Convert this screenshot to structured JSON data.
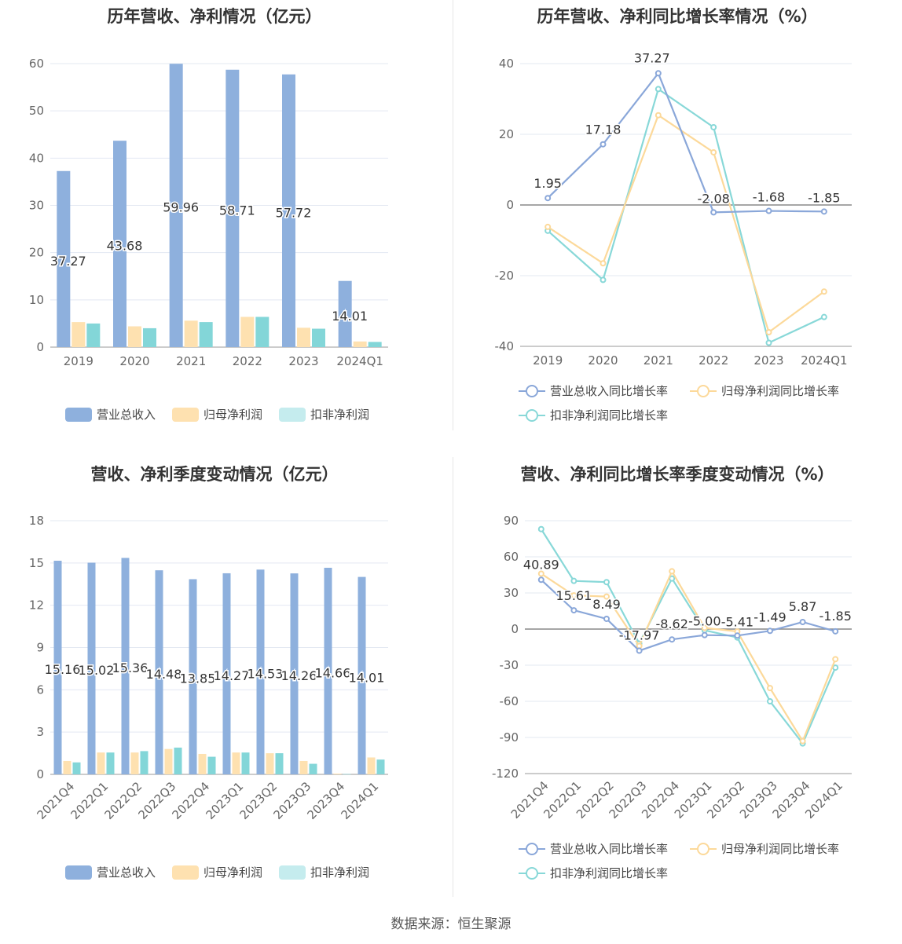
{
  "colors": {
    "revenue": "#8eb0dd",
    "parent_profit": "#fee1b0",
    "deducted_profit": "#83d6d8",
    "revenue_line": "#8aa7d9",
    "parent_line": "#fcd99a",
    "deducted_line": "#88d8d8"
  },
  "legend": {
    "revenue": "营业总收入",
    "parent_profit": "归母净利润",
    "deducted_profit": "扣非净利润",
    "revenue_growth": "营业总收入同比增长率",
    "parent_growth": "归母净利润同比增长率",
    "deducted_growth": "扣非净利润同比增长率"
  },
  "footer": "数据来源：恒生聚源",
  "chart_data": [
    {
      "type": "bar",
      "title": "历年营收、净利情况（亿元）",
      "categories": [
        "2019",
        "2020",
        "2021",
        "2022",
        "2023",
        "2024Q1"
      ],
      "ylim": [
        0,
        60
      ],
      "yticks": [
        "0",
        "10",
        "20",
        "30",
        "40",
        "50",
        "60"
      ],
      "grid": true,
      "series": [
        {
          "name": "营业总收入",
          "values": [
            37.27,
            43.68,
            59.96,
            58.71,
            57.72,
            14.01
          ],
          "labels": [
            "37.27",
            "43.68",
            "59.96",
            "58.71",
            "57.72",
            "14.01"
          ]
        },
        {
          "name": "归母净利润",
          "values": [
            5.3,
            4.4,
            5.6,
            6.4,
            4.1,
            1.2
          ]
        },
        {
          "name": "扣非净利润",
          "values": [
            5.0,
            4.0,
            5.3,
            6.4,
            3.9,
            1.1
          ]
        }
      ]
    },
    {
      "type": "line",
      "title": "历年营收、净利同比增长率情况（%）",
      "categories": [
        "2019",
        "2020",
        "2021",
        "2022",
        "2023",
        "2024Q1"
      ],
      "ylim": [
        -40,
        40
      ],
      "yticks": [
        "-40",
        "-20",
        "0",
        "20",
        "40"
      ],
      "grid": true,
      "series": [
        {
          "name": "营业总收入同比增长率",
          "values": [
            1.95,
            17.18,
            37.27,
            -2.08,
            -1.68,
            -1.85
          ],
          "labels": [
            "1.95",
            "17.18",
            "37.27",
            "-2.08",
            "-1.68",
            "-1.85"
          ]
        },
        {
          "name": "归母净利润同比增长率",
          "values": [
            -6.2,
            -16.5,
            25.4,
            14.9,
            -36.0,
            -24.5
          ]
        },
        {
          "name": "扣非净利润同比增长率",
          "values": [
            -7.3,
            -21.2,
            32.8,
            22.0,
            -39.0,
            -31.7
          ]
        }
      ]
    },
    {
      "type": "bar",
      "title": "营收、净利季度变动情况（亿元）",
      "categories": [
        "2021Q4",
        "2022Q1",
        "2022Q2",
        "2022Q3",
        "2022Q4",
        "2023Q1",
        "2023Q2",
        "2023Q3",
        "2023Q4",
        "2024Q1"
      ],
      "ylim": [
        0,
        18
      ],
      "yticks": [
        "0",
        "3",
        "6",
        "9",
        "12",
        "15",
        "18"
      ],
      "grid": true,
      "series": [
        {
          "name": "营业总收入",
          "values": [
            15.16,
            15.02,
            15.36,
            14.48,
            13.85,
            14.27,
            14.53,
            14.26,
            14.66,
            14.01
          ],
          "labels": [
            "15.16",
            "15.02",
            "15.36",
            "14.48",
            "13.85",
            "14.27",
            "14.53",
            "14.26",
            "14.66",
            "14.01"
          ]
        },
        {
          "name": "归母净利润",
          "values": [
            0.95,
            1.55,
            1.55,
            1.8,
            1.45,
            1.55,
            1.5,
            0.95,
            0.05,
            1.2
          ]
        },
        {
          "name": "扣非净利润",
          "values": [
            0.85,
            1.55,
            1.65,
            1.9,
            1.25,
            1.55,
            1.5,
            0.75,
            0.02,
            1.05
          ]
        }
      ]
    },
    {
      "type": "line",
      "title": "营收、净利同比增长率季度变动情况（%）",
      "categories": [
        "2021Q4",
        "2022Q1",
        "2022Q2",
        "2022Q3",
        "2022Q4",
        "2023Q1",
        "2023Q2",
        "2023Q3",
        "2023Q4",
        "2024Q1"
      ],
      "ylim": [
        -120,
        90
      ],
      "yticks": [
        "-120",
        "-90",
        "-60",
        "-30",
        "0",
        "30",
        "60",
        "90"
      ],
      "grid": true,
      "series": [
        {
          "name": "营业总收入同比增长率",
          "values": [
            40.89,
            15.61,
            8.49,
            -17.97,
            -8.62,
            -5.0,
            -5.41,
            -1.49,
            5.87,
            -1.85
          ],
          "labels": [
            "40.89",
            "15.61",
            "8.49",
            "-17.97",
            "-8.62",
            "-5.00",
            "-5.41",
            "-1.49",
            "5.87",
            "-1.85"
          ]
        },
        {
          "name": "归母净利润同比增长率",
          "values": [
            46.0,
            28.0,
            27.0,
            -14.0,
            48.0,
            1.0,
            -2.0,
            -49.0,
            -93.0,
            -25.0
          ]
        },
        {
          "name": "扣非净利润同比增长率",
          "values": [
            83.0,
            40.0,
            39.0,
            -12.0,
            42.0,
            -1.0,
            -7.0,
            -60.0,
            -95.0,
            -32.0
          ]
        }
      ]
    }
  ]
}
